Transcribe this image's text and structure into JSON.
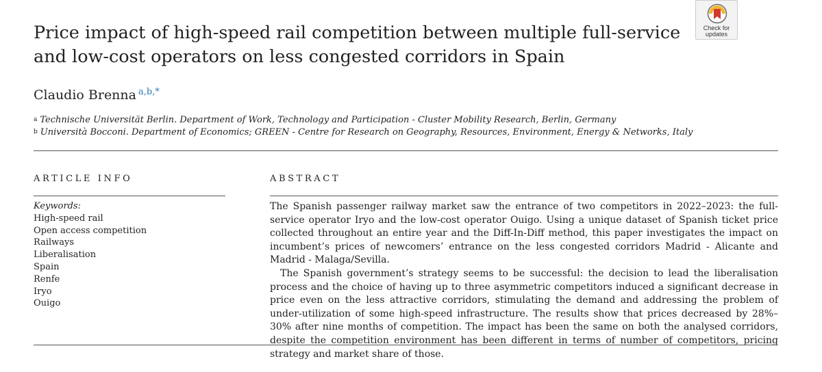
{
  "title": "Price impact of high-speed rail competition between multiple full-service and low-cost operators on less congested corridors in Spain",
  "badge": {
    "line1": "Check for",
    "line2": "updates",
    "icon": "crossmark-icon",
    "colors": {
      "red": "#d23a2c",
      "yellow": "#f2b632",
      "gray": "#6b6b6b"
    }
  },
  "author": {
    "name": "Claudio Brenna",
    "affiliation_marks": "a,b,*"
  },
  "affiliations": [
    {
      "mark": "a",
      "text": "Technische Universität Berlin. Department of Work, Technology and Participation - Cluster Mobility Research, Berlin, Germany"
    },
    {
      "mark": "b",
      "text": "Università Bocconi. Department of Economics; GREEN - Centre for Research on Geography, Resources, Environment, Energy & Networks, Italy"
    }
  ],
  "article_info": {
    "heading": "ARTICLE INFO",
    "keywords_label": "Keywords:",
    "keywords": [
      "High-speed rail",
      "Open access competition",
      "Railways",
      "Liberalisation",
      "Spain",
      "Renfe",
      "Iryo",
      "Ouigo"
    ]
  },
  "abstract": {
    "heading": "ABSTRACT",
    "paragraphs": [
      "The Spanish passenger railway market saw the entrance of two competitors in 2022–2023: the full-service operator Iryo and the low-cost operator Ouigo. Using a unique dataset of Spanish ticket price collected throughout an entire year and the Diff-In-Diff method, this paper investigates the impact on incumbent’s prices of newcomers’ entrance on the less congested corridors Madrid - Alicante and Madrid - Malaga/Sevilla.",
      "The Spanish government’s strategy seems to be successful: the decision to lead the liberalisation process and the choice of having up to three asymmetric competitors induced a significant decrease in price even on the less attractive corridors, stimulating the demand and addressing the problem of under-utilization of some high-speed infrastructure. The results show that prices decreased by 28%–30% after nine months of competition. The impact has been the same on both the analysed corridors, despite the competition environment has been different in terms of number of competitors, pricing strategy and market share of those."
    ]
  }
}
